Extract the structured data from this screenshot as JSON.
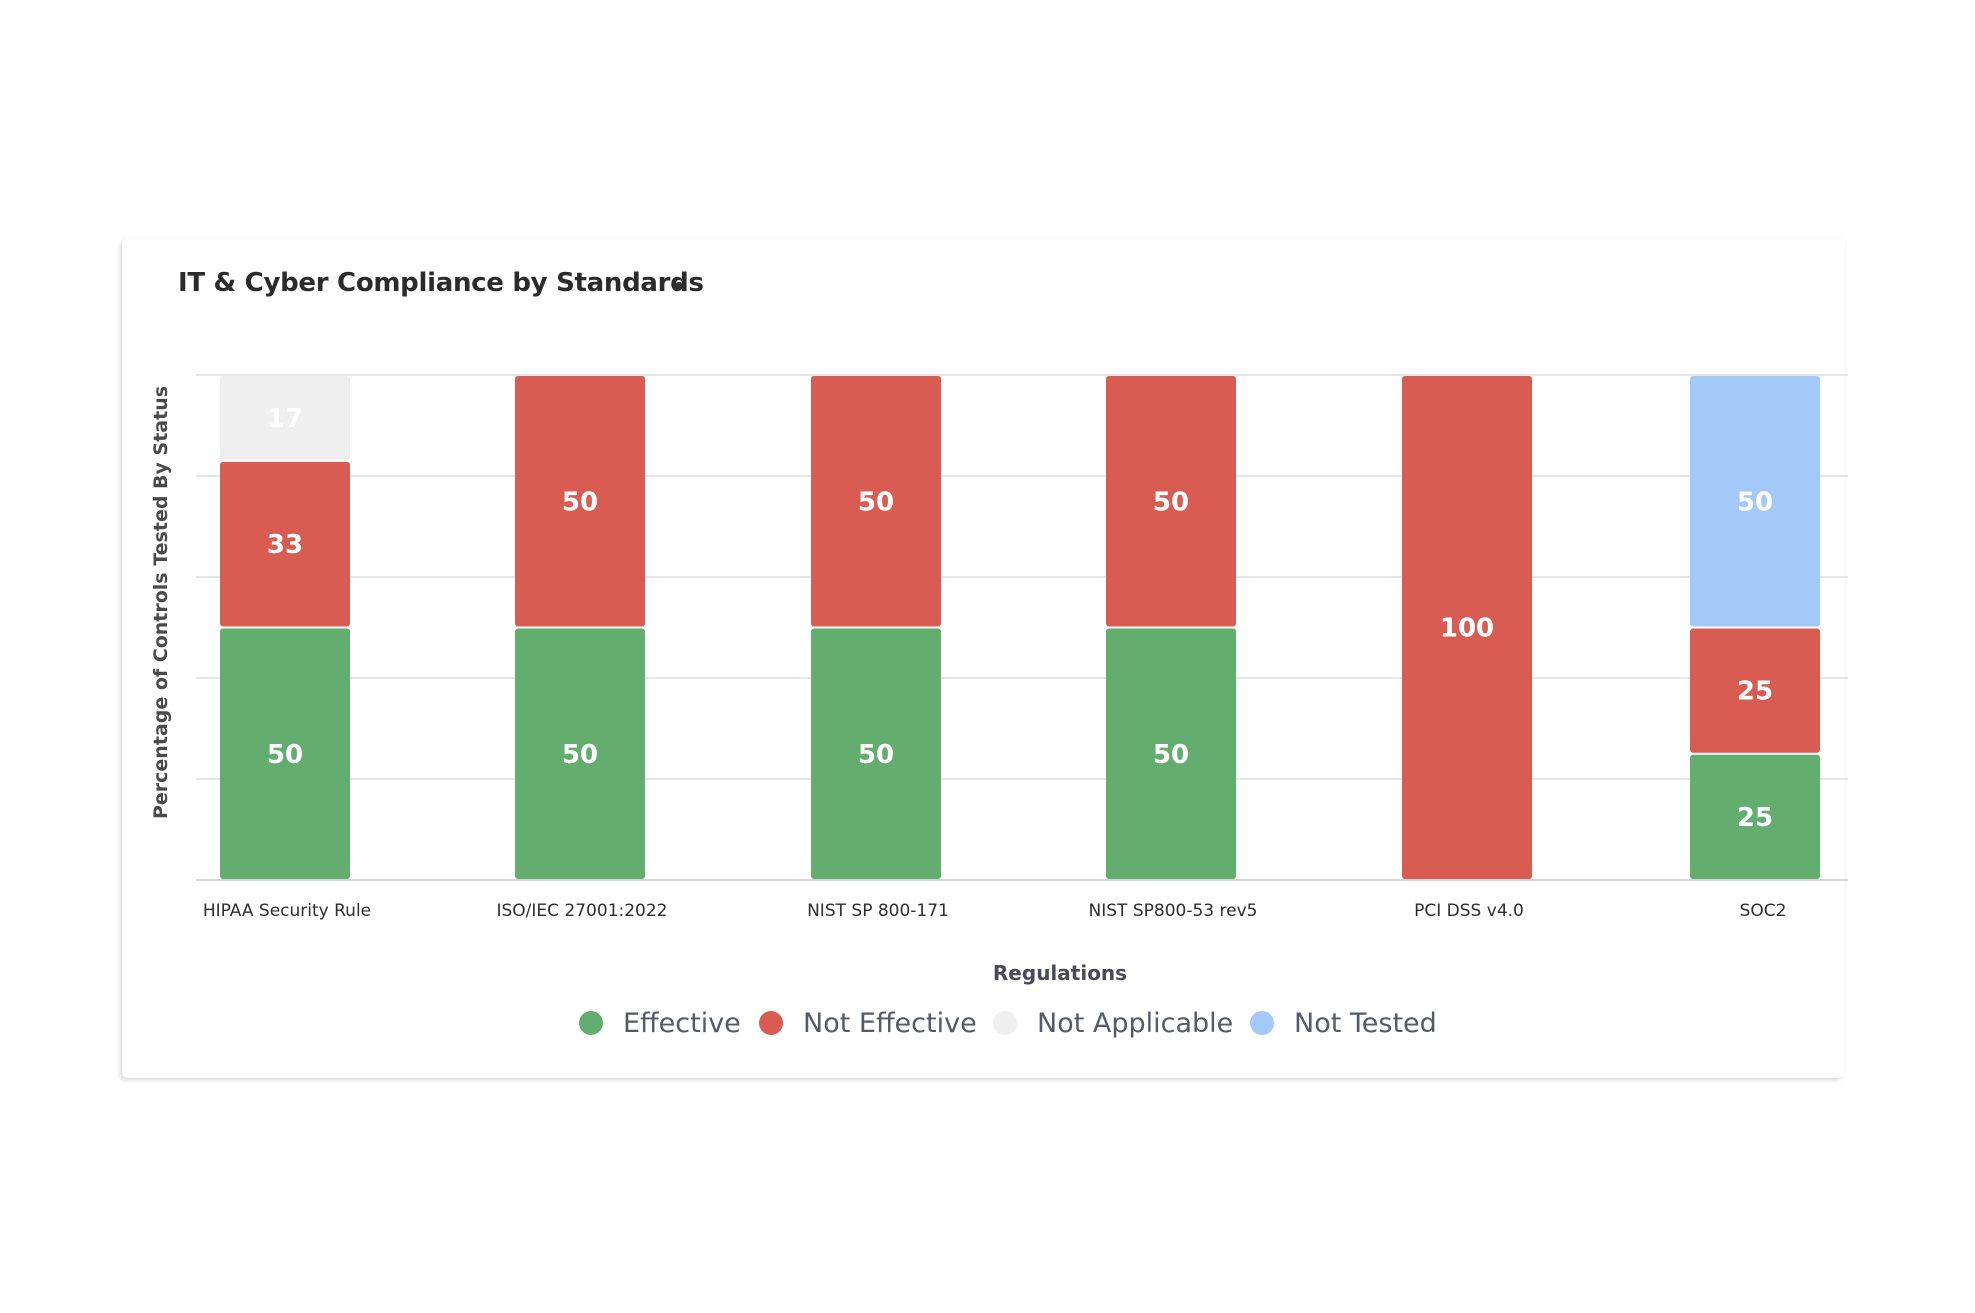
{
  "card": {
    "title": "IT & Cyber Compliance by Standards"
  },
  "chart_data": {
    "type": "bar",
    "stacked": true,
    "categories": [
      "HIPAA Security Rule",
      "ISO/IEC 27001:2022",
      "NIST SP 800-171",
      "NIST SP800-53 rev5",
      "PCI DSS v4.0",
      "SOC2"
    ],
    "series": [
      {
        "name": "Effective",
        "color": "#63ad6e",
        "values": [
          50,
          50,
          50,
          50,
          0,
          25
        ]
      },
      {
        "name": "Not Effective",
        "color": "#d85c52",
        "values": [
          33,
          50,
          50,
          50,
          100,
          25
        ]
      },
      {
        "name": "Not Applicable",
        "color": "#efefef",
        "values": [
          17,
          0,
          0,
          0,
          0,
          0
        ]
      },
      {
        "name": "Not Tested",
        "color": "#a3c9f9",
        "values": [
          0,
          0,
          0,
          0,
          0,
          50
        ]
      }
    ],
    "xlabel": "Regulations",
    "ylabel": "Percentage of Controls Tested By Status",
    "ylim": [
      0,
      100
    ],
    "grid": true,
    "legend_position": "bottom",
    "data_labels": true
  }
}
